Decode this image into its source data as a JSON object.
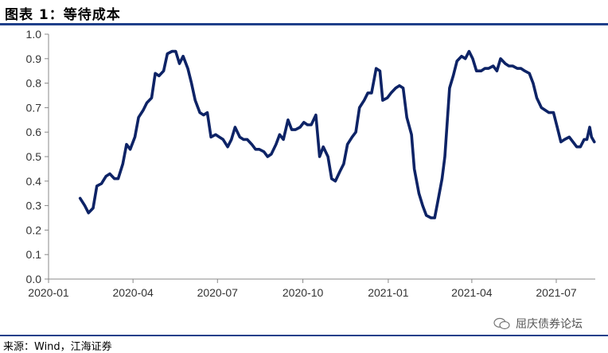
{
  "header": {
    "title": "图表 1：等待成本"
  },
  "footer": {
    "source": "来源：Wind，江海证券"
  },
  "watermark": {
    "text": "屈庆债券论坛",
    "icon": "wechat-icon"
  },
  "colors": {
    "line": "#0d2366",
    "rule": "#1f3f8a",
    "axis": "#888888"
  },
  "chart_data": {
    "type": "line",
    "title": "等待成本",
    "xlabel": "",
    "ylabel": "",
    "ylim": [
      0.0,
      1.0
    ],
    "yticks": [
      "0.0",
      "0.1",
      "0.2",
      "0.3",
      "0.4",
      "0.5",
      "0.6",
      "0.7",
      "0.8",
      "0.9",
      "1.0"
    ],
    "xrange": [
      "2020-01-01",
      "2021-08-12"
    ],
    "xticks": [
      "2020-01",
      "2020-04",
      "2020-07",
      "2020-10",
      "2021-01",
      "2021-04",
      "2021-07"
    ],
    "grid": false,
    "legend": "none",
    "series": [
      {
        "name": "",
        "points": [
          [
            "2020-02-04",
            0.33
          ],
          [
            "2020-02-09",
            0.3
          ],
          [
            "2020-02-13",
            0.27
          ],
          [
            "2020-02-18",
            0.29
          ],
          [
            "2020-02-22",
            0.38
          ],
          [
            "2020-02-27",
            0.39
          ],
          [
            "2020-03-03",
            0.42
          ],
          [
            "2020-03-07",
            0.43
          ],
          [
            "2020-03-12",
            0.41
          ],
          [
            "2020-03-16",
            0.41
          ],
          [
            "2020-03-21",
            0.47
          ],
          [
            "2020-03-25",
            0.55
          ],
          [
            "2020-03-29",
            0.53
          ],
          [
            "2020-04-03",
            0.58
          ],
          [
            "2020-04-07",
            0.66
          ],
          [
            "2020-04-12",
            0.69
          ],
          [
            "2020-04-16",
            0.72
          ],
          [
            "2020-04-21",
            0.74
          ],
          [
            "2020-04-25",
            0.84
          ],
          [
            "2020-04-29",
            0.83
          ],
          [
            "2020-05-04",
            0.85
          ],
          [
            "2020-05-08",
            0.92
          ],
          [
            "2020-05-13",
            0.93
          ],
          [
            "2020-05-17",
            0.93
          ],
          [
            "2020-05-21",
            0.88
          ],
          [
            "2020-05-25",
            0.91
          ],
          [
            "2020-05-30",
            0.86
          ],
          [
            "2020-06-03",
            0.8
          ],
          [
            "2020-06-07",
            0.73
          ],
          [
            "2020-06-12",
            0.68
          ],
          [
            "2020-06-16",
            0.67
          ],
          [
            "2020-06-20",
            0.68
          ],
          [
            "2020-06-24",
            0.58
          ],
          [
            "2020-06-29",
            0.59
          ],
          [
            "2020-07-03",
            0.58
          ],
          [
            "2020-07-07",
            0.57
          ],
          [
            "2020-07-12",
            0.54
          ],
          [
            "2020-07-16",
            0.57
          ],
          [
            "2020-07-20",
            0.62
          ],
          [
            "2020-07-25",
            0.58
          ],
          [
            "2020-07-29",
            0.57
          ],
          [
            "2020-08-02",
            0.57
          ],
          [
            "2020-08-07",
            0.55
          ],
          [
            "2020-08-11",
            0.53
          ],
          [
            "2020-08-15",
            0.53
          ],
          [
            "2020-08-20",
            0.52
          ],
          [
            "2020-08-24",
            0.5
          ],
          [
            "2020-08-28",
            0.51
          ],
          [
            "2020-09-02",
            0.55
          ],
          [
            "2020-09-06",
            0.59
          ],
          [
            "2020-09-10",
            0.57
          ],
          [
            "2020-09-15",
            0.65
          ],
          [
            "2020-09-19",
            0.61
          ],
          [
            "2020-09-23",
            0.61
          ],
          [
            "2020-09-28",
            0.62
          ],
          [
            "2020-10-02",
            0.64
          ],
          [
            "2020-10-06",
            0.63
          ],
          [
            "2020-10-10",
            0.63
          ],
          [
            "2020-10-15",
            0.67
          ],
          [
            "2020-10-19",
            0.5
          ],
          [
            "2020-10-23",
            0.54
          ],
          [
            "2020-10-28",
            0.5
          ],
          [
            "2020-11-01",
            0.41
          ],
          [
            "2020-11-05",
            0.4
          ],
          [
            "2020-11-10",
            0.44
          ],
          [
            "2020-11-14",
            0.47
          ],
          [
            "2020-11-18",
            0.55
          ],
          [
            "2020-11-23",
            0.58
          ],
          [
            "2020-11-27",
            0.6
          ],
          [
            "2020-12-01",
            0.7
          ],
          [
            "2020-12-06",
            0.73
          ],
          [
            "2020-12-10",
            0.76
          ],
          [
            "2020-12-14",
            0.76
          ],
          [
            "2020-12-19",
            0.86
          ],
          [
            "2020-12-23",
            0.85
          ],
          [
            "2020-12-26",
            0.73
          ],
          [
            "2020-12-31",
            0.74
          ],
          [
            "2021-01-04",
            0.76
          ],
          [
            "2021-01-09",
            0.78
          ],
          [
            "2021-01-13",
            0.79
          ],
          [
            "2021-01-17",
            0.78
          ],
          [
            "2021-01-21",
            0.66
          ],
          [
            "2021-01-26",
            0.59
          ],
          [
            "2021-01-29",
            0.45
          ],
          [
            "2021-02-03",
            0.35
          ],
          [
            "2021-02-07",
            0.3
          ],
          [
            "2021-02-11",
            0.26
          ],
          [
            "2021-02-16",
            0.25
          ],
          [
            "2021-02-20",
            0.25
          ],
          [
            "2021-02-24",
            0.33
          ],
          [
            "2021-02-28",
            0.41
          ],
          [
            "2021-03-03",
            0.5
          ],
          [
            "2021-03-08",
            0.78
          ],
          [
            "2021-03-12",
            0.83
          ],
          [
            "2021-03-16",
            0.89
          ],
          [
            "2021-03-21",
            0.91
          ],
          [
            "2021-03-25",
            0.9
          ],
          [
            "2021-03-29",
            0.93
          ],
          [
            "2021-04-02",
            0.9
          ],
          [
            "2021-04-06",
            0.85
          ],
          [
            "2021-04-11",
            0.85
          ],
          [
            "2021-04-15",
            0.86
          ],
          [
            "2021-04-19",
            0.86
          ],
          [
            "2021-04-24",
            0.87
          ],
          [
            "2021-04-28",
            0.85
          ],
          [
            "2021-05-02",
            0.9
          ],
          [
            "2021-05-07",
            0.88
          ],
          [
            "2021-05-11",
            0.87
          ],
          [
            "2021-05-15",
            0.87
          ],
          [
            "2021-05-20",
            0.86
          ],
          [
            "2021-05-24",
            0.86
          ],
          [
            "2021-05-28",
            0.85
          ],
          [
            "2021-06-02",
            0.84
          ],
          [
            "2021-06-06",
            0.8
          ],
          [
            "2021-06-10",
            0.74
          ],
          [
            "2021-06-15",
            0.7
          ],
          [
            "2021-06-19",
            0.69
          ],
          [
            "2021-06-23",
            0.68
          ],
          [
            "2021-06-28",
            0.68
          ],
          [
            "2021-07-02",
            0.62
          ],
          [
            "2021-07-06",
            0.56
          ],
          [
            "2021-07-10",
            0.57
          ],
          [
            "2021-07-15",
            0.58
          ],
          [
            "2021-07-19",
            0.56
          ],
          [
            "2021-07-23",
            0.54
          ],
          [
            "2021-07-27",
            0.54
          ],
          [
            "2021-07-31",
            0.57
          ],
          [
            "2021-08-03",
            0.57
          ],
          [
            "2021-08-06",
            0.62
          ],
          [
            "2021-08-08",
            0.58
          ],
          [
            "2021-08-11",
            0.56
          ]
        ]
      }
    ]
  }
}
